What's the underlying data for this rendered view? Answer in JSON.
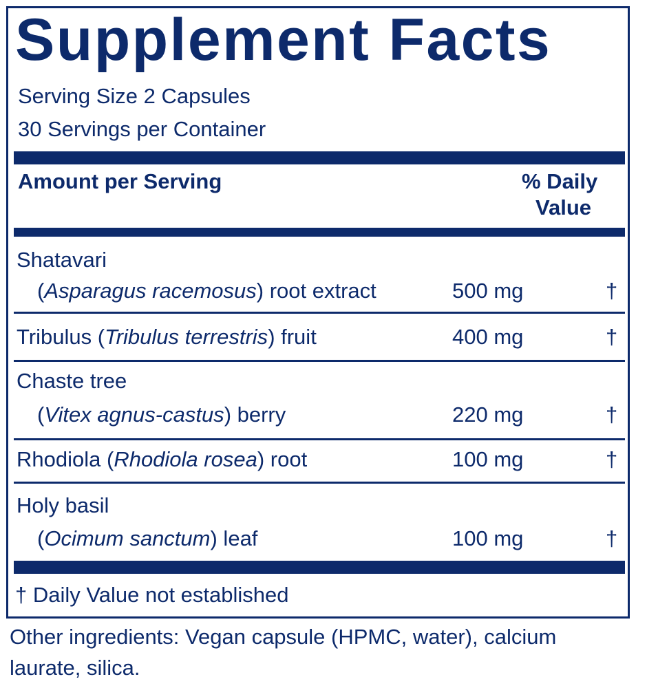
{
  "title": "Supplement Facts",
  "serving_size": "Serving Size 2 Capsules",
  "servings_per_container": "30 Servings per Container",
  "header": {
    "amount": "Amount per Serving",
    "dv_line1": "% Daily",
    "dv_line2": "Value"
  },
  "ingredients": [
    {
      "name": "Shatavari",
      "open": "(",
      "latin": "Asparagus racemosus",
      "close": ") root extract",
      "amount": "500 mg",
      "dv": "†"
    },
    {
      "name": "Tribulus (",
      "latin": "Tribulus terrestris",
      "close": ") fruit",
      "amount": "400 mg",
      "dv": "†"
    },
    {
      "name": "Chaste tree",
      "open": "(",
      "latin": "Vitex agnus-castus",
      "close": ") berry",
      "amount": "220 mg",
      "dv": "†"
    },
    {
      "name": "Rhodiola (",
      "latin": "Rhodiola rosea",
      "close": ") root",
      "amount": "100 mg",
      "dv": "†"
    },
    {
      "name": "Holy basil",
      "open": "(",
      "latin": "Ocimum sanctum",
      "close": ") leaf",
      "amount": "100 mg",
      "dv": "†"
    }
  ],
  "footnote": "† Daily Value not established",
  "other_ingredients_line1": "Other ingredients: Vegan capsule (HPMC, water), calcium",
  "other_ingredients_line2": "laurate, silica.",
  "colors": {
    "ink": "#0d2a6b",
    "background": "#ffffff"
  }
}
